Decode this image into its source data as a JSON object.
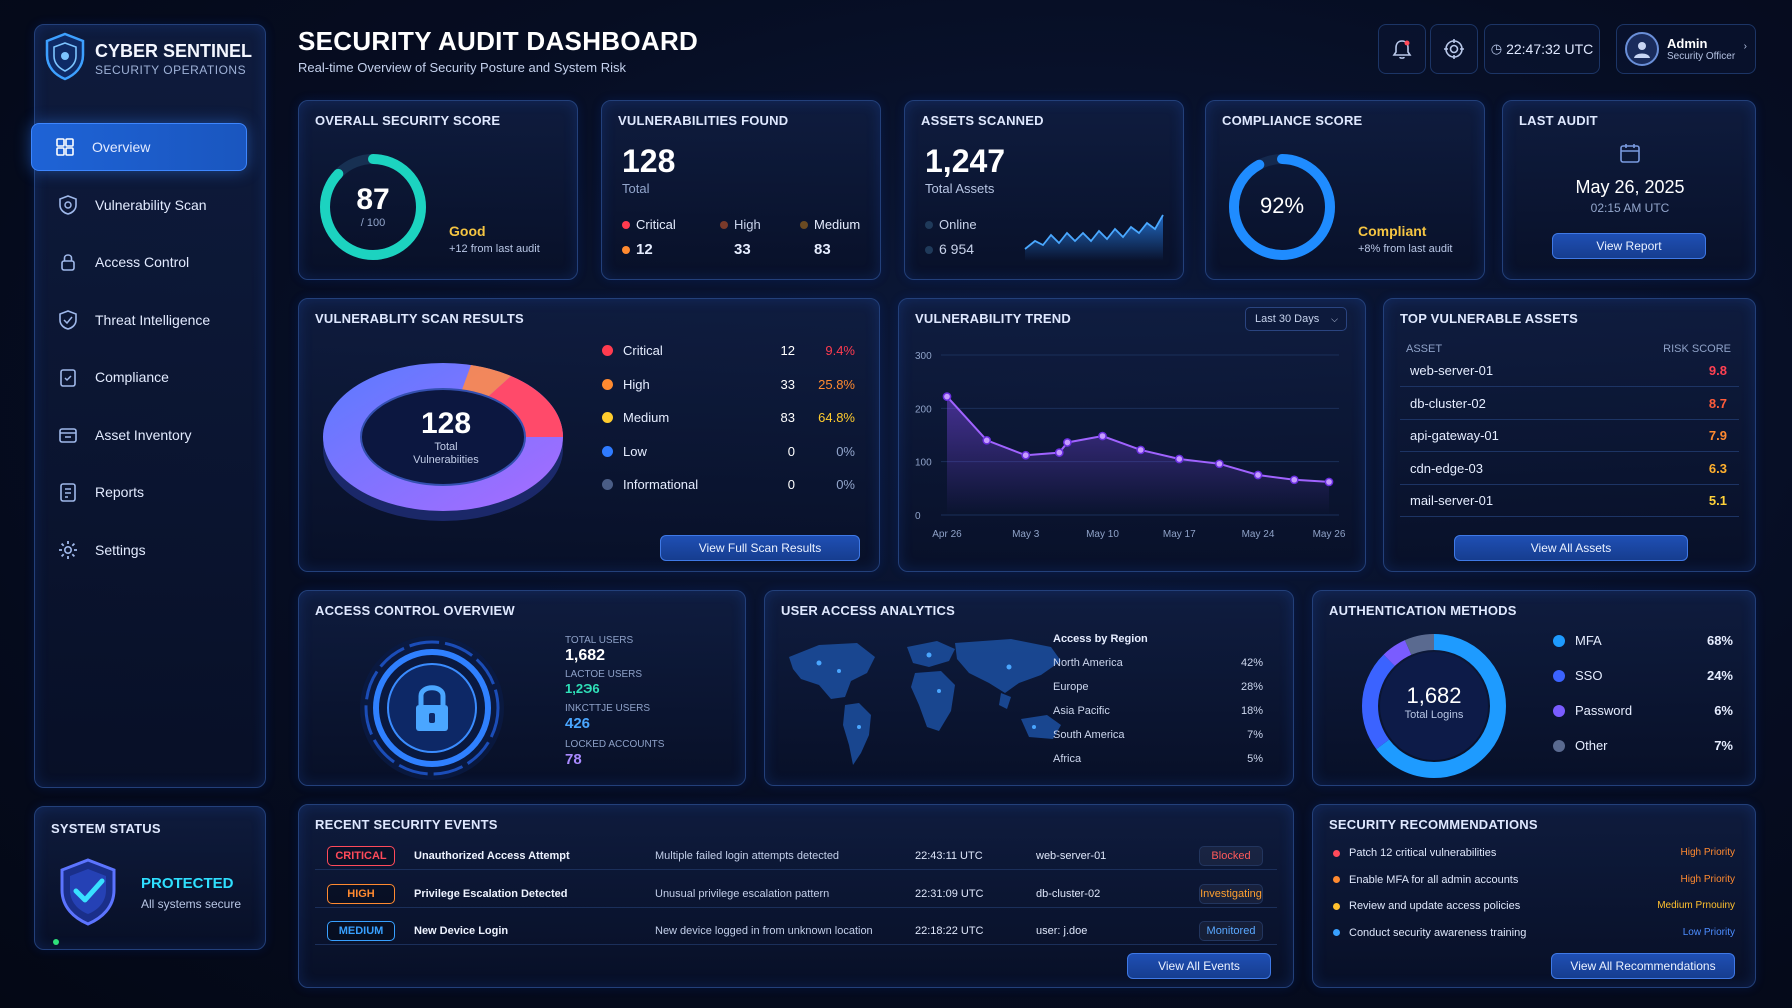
{
  "brand": {
    "title": "CYBER SENTINEL",
    "subtitle": "SECURITY OPERATIONS"
  },
  "header": {
    "title": "SECURITY AUDIT DASHBOARD",
    "subtitle": "Real-time Overview of Security Posture and System Risk",
    "time": "22:47:32 UTC",
    "user_name": "Admin",
    "user_role": "Security Officer"
  },
  "sidebar": {
    "items": [
      {
        "label": "Overview",
        "icon": "grid-icon",
        "active": true
      },
      {
        "label": "Vulnerability Scan",
        "icon": "shield-scan-icon"
      },
      {
        "label": "Access Control",
        "icon": "lock-icon"
      },
      {
        "label": "Threat Intelligence",
        "icon": "shield-icon"
      },
      {
        "label": "Compliance",
        "icon": "clipboard-check-icon"
      },
      {
        "label": "Asset Inventory",
        "icon": "asset-box-icon"
      },
      {
        "label": "Reports",
        "icon": "report-icon"
      },
      {
        "label": "Settings",
        "icon": "gear-icon"
      }
    ]
  },
  "system_status": {
    "title": "SYSTEM STATUS",
    "state": "PROTECTED",
    "detail": "All systems secure"
  },
  "kpi": {
    "score": {
      "title": "OVERALL SECURITY SCORE",
      "value": "87",
      "max": "/ 100",
      "fraction": 0.87,
      "rating": "Good",
      "delta": "+12 from last audit"
    },
    "vulns": {
      "title": "VULNERABILITIES FOUND",
      "total": "128",
      "total_label": "Total",
      "critical_label": "Critical",
      "critical": "12",
      "high_label": "High",
      "high": "33",
      "medium_label": "Medium",
      "medium": "83"
    },
    "assets": {
      "title": "ASSETS SCANNED",
      "total": "1,247",
      "total_label": "Total Assets",
      "online_label": "Online",
      "online": "6 954"
    },
    "compliance": {
      "title": "COMPLIANCE SCORE",
      "value": "92%",
      "fraction": 0.92,
      "status": "Compliant",
      "delta": "+8% from last audit"
    },
    "audit": {
      "title": "LAST AUDIT",
      "date": "May 26, 2025",
      "time": "02:15 AM UTC",
      "button": "View Report"
    }
  },
  "scan": {
    "title": "VULNERABLITY SCAN RESULTS",
    "total": "128",
    "total_label": "Total",
    "total_label2": "Vulnerabiities",
    "button": "View Full Scan Results",
    "rows": [
      {
        "label": "Critical",
        "count": "12",
        "pct": "9.4%",
        "color": "#ff3b4f"
      },
      {
        "label": "High",
        "count": "33",
        "pct": "25.8%",
        "color": "#ff8a30"
      },
      {
        "label": "Medium",
        "count": "83",
        "pct": "64.8%",
        "color": "#ffcc2e"
      },
      {
        "label": "Low",
        "count": "0",
        "pct": "0%",
        "color": "#2f7bff"
      },
      {
        "label": "Informational",
        "count": "0",
        "pct": "0%",
        "color": "#4a5d86"
      }
    ]
  },
  "trend": {
    "title": "VULNERABILITY TREND",
    "range": "Last 30 Days"
  },
  "chart_data": {
    "type": "line",
    "title": "VULNERABILITY TREND",
    "x_ticks": [
      "Apr 26",
      "May 3",
      "May 10",
      "May 17",
      "May 24",
      "May 26"
    ],
    "y_ticks": [
      "300",
      "200",
      "100",
      "0"
    ],
    "ylim": [
      0,
      300
    ],
    "series": [
      {
        "values": [
          222,
          140,
          112,
          117,
          136,
          148,
          122,
          105,
          96,
          75,
          66,
          62
        ]
      }
    ],
    "x": [
      0,
      1.03,
      2.04,
      2.91,
      3.12,
      4.03,
      5.02,
      6.02,
      7.06,
      8.06,
      9.0,
      9.9
    ]
  },
  "top_assets": {
    "title": "TOP VULNERABLE ASSETS",
    "col_asset": "ASSET",
    "col_score": "RISK SCORE",
    "button": "View All Assets",
    "rows": [
      {
        "name": "web-server-01",
        "score": "9.8",
        "color": "#ff4052"
      },
      {
        "name": "db-cluster-02",
        "score": "8.7",
        "color": "#ff5c3a"
      },
      {
        "name": "api-gateway-01",
        "score": "7.9",
        "color": "#ff8a30"
      },
      {
        "name": "cdn-edge-03",
        "score": "6.3",
        "color": "#ffb02e"
      },
      {
        "name": "mail-server-01",
        "score": "5.1",
        "color": "#ffd23a"
      }
    ]
  },
  "access": {
    "title": "ACCESS CONTROL OVERVIEW",
    "total_label": "TOTAL USERS",
    "total": "1,682",
    "active_label": "LACTOE USERS",
    "active": "1,2Э6",
    "inactive_label": "INKCTTJE USERS",
    "inactive": "426",
    "locked_label": "LOCKED ACCOUNTS",
    "locked": "78"
  },
  "analytics": {
    "title": "USER ACCESS ANALYTICS",
    "region_title": "Access by Region",
    "regions": [
      {
        "name": "North America",
        "pct": "42%"
      },
      {
        "name": "Europe",
        "pct": "28%"
      },
      {
        "name": "Asia Pacific",
        "pct": "18%"
      },
      {
        "name": "South America",
        "pct": "7%"
      },
      {
        "name": "Africa",
        "pct": "5%"
      }
    ]
  },
  "auth": {
    "title": "AUTHENTICATION METHODS",
    "total": "1,682",
    "total_label": "Total Logins",
    "methods": [
      {
        "name": "MFA",
        "pct": "68%",
        "value": 68,
        "color": "#1e9bff"
      },
      {
        "name": "SSO",
        "pct": "24%",
        "value": 24,
        "color": "#3b63ff"
      },
      {
        "name": "Password",
        "pct": "6%",
        "value": 6,
        "color": "#7a5cff"
      },
      {
        "name": "Other",
        "pct": "7%",
        "value": 7,
        "color": "#5a6a90"
      }
    ]
  },
  "events": {
    "title": "RECENT SECURITY EVENTS",
    "button": "View All Events",
    "rows": [
      {
        "severity": "CRITICAL",
        "sev_color": "#ff4a5a",
        "name": "Unauthorized Access Attempt",
        "desc": "Multiple failed login attempts detected",
        "time": "22:43:11 UTC",
        "target": "web-server-01",
        "status": "Blocked",
        "status_color": "#ff5a5a"
      },
      {
        "severity": "HIGH",
        "sev_color": "#ff8a30",
        "name": "Privilege Escalation Detected",
        "desc": "Unusual privilege escalation pattern",
        "time": "22:31:09 UTC",
        "target": "db-cluster-02",
        "status": "Investigating",
        "status_color": "#ffa030"
      },
      {
        "severity": "MEDIUM",
        "sev_color": "#38a0ff",
        "name": "New Device Login",
        "desc": "New device logged in from unknown location",
        "time": "22:18:22 UTC",
        "target": "user: j.doe",
        "status": "Monitored",
        "status_color": "#5aa8ff"
      }
    ]
  },
  "recs": {
    "title": "SECURITY RECOMMENDATIONS",
    "button": "View All Recommendations",
    "rows": [
      {
        "text": "Patch 12 critical vulnerabilities",
        "priority": "High Priority",
        "color": "#ff4a5a",
        "pcolor": "#ff8a30"
      },
      {
        "text": "Enable MFA for all admin accounts",
        "priority": "High Priority",
        "color": "#ff8a30",
        "pcolor": "#ff8a30"
      },
      {
        "text": "Review and update access policies",
        "priority": "Medium Prnouiny",
        "color": "#ffc02e",
        "pcolor": "#ffc02e"
      },
      {
        "text": "Conduct security awareness training",
        "priority": "Low Priority",
        "color": "#38a0ff",
        "pcolor": "#4d8dff"
      }
    ]
  }
}
